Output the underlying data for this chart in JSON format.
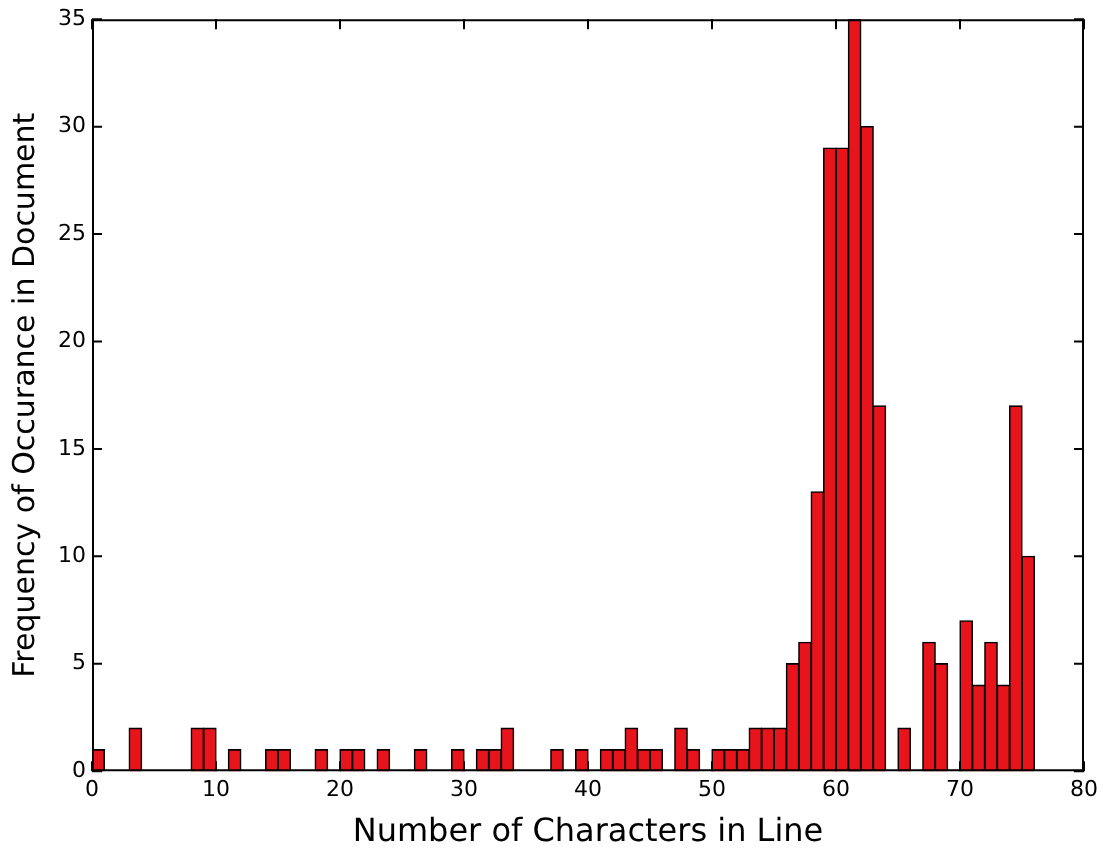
{
  "chart_data": {
    "type": "histogram",
    "xlabel": "Number of Characters in Line",
    "ylabel": "Frequency of Occurance in Document",
    "bins": [
      0,
      1,
      2,
      3,
      4,
      5,
      6,
      7,
      8,
      9,
      10,
      11,
      12,
      13,
      14,
      15,
      16,
      17,
      18,
      19,
      20,
      21,
      22,
      23,
      24,
      25,
      26,
      27,
      28,
      29,
      30,
      31,
      32,
      33,
      34,
      35,
      36,
      37,
      38,
      39,
      40,
      41,
      42,
      43,
      44,
      45,
      46,
      47,
      48,
      49,
      50,
      51,
      52,
      53,
      54,
      55,
      56,
      57,
      58,
      59,
      60,
      61,
      62,
      63,
      64,
      65,
      66,
      67,
      68,
      69,
      70,
      71,
      72,
      73,
      74,
      75,
      76
    ],
    "values": [
      1,
      0,
      0,
      2,
      0,
      0,
      0,
      0,
      2,
      2,
      0,
      1,
      0,
      0,
      1,
      1,
      0,
      0,
      1,
      0,
      1,
      1,
      0,
      1,
      0,
      0,
      1,
      0,
      0,
      1,
      0,
      1,
      1,
      2,
      0,
      0,
      0,
      1,
      0,
      1,
      0,
      1,
      1,
      2,
      1,
      1,
      0,
      2,
      1,
      0,
      1,
      1,
      1,
      2,
      2,
      2,
      5,
      6,
      13,
      29,
      29,
      35,
      30,
      17,
      0,
      2,
      0,
      6,
      5,
      0,
      7,
      4,
      6,
      4,
      17,
      10
    ],
    "color": "#e8141c",
    "xlim": [
      0,
      80
    ],
    "xticks": [
      0,
      10,
      20,
      30,
      40,
      50,
      60,
      70,
      80
    ],
    "ylim": [
      0,
      35
    ],
    "yticks": [
      0,
      5,
      10,
      15,
      20,
      25,
      30,
      35
    ],
    "grid": false
  }
}
